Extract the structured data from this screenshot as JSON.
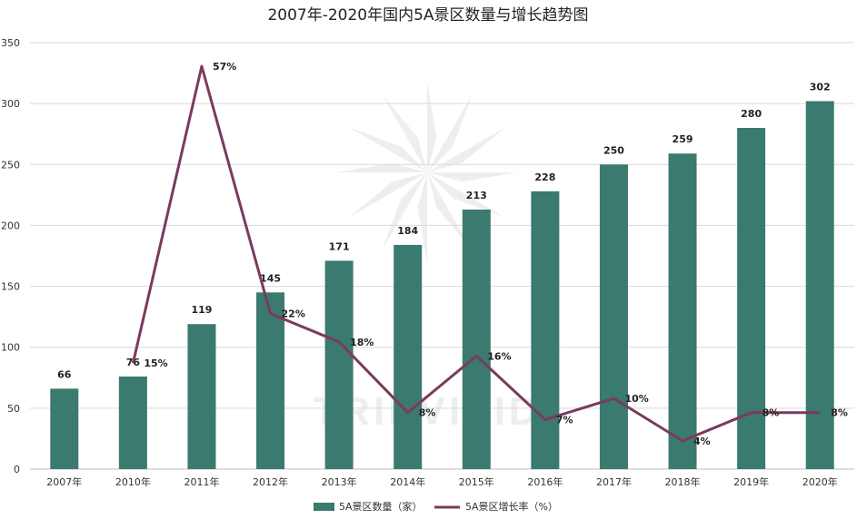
{
  "chart_data": {
    "type": "bar",
    "title": "2007年-2020年国内5A景区数量与增长趋势图",
    "categories": [
      "2007年",
      "2010年",
      "2011年",
      "2012年",
      "2013年",
      "2014年",
      "2015年",
      "2016年",
      "2017年",
      "2018年",
      "2019年",
      "2020年"
    ],
    "series": [
      {
        "name": "5A景区数量（家）",
        "type": "bar",
        "color": "#3b7a6f",
        "values": [
          66,
          76,
          119,
          145,
          171,
          184,
          213,
          228,
          250,
          259,
          280,
          302
        ],
        "labels": [
          "66",
          "76",
          "119",
          "145",
          "171",
          "184",
          "213",
          "228",
          "250",
          "259",
          "280",
          "302"
        ]
      },
      {
        "name": "5A景区增长率（%）",
        "type": "line",
        "color": "#7b3a5e",
        "values": [
          null,
          15,
          57,
          22,
          18,
          8,
          16,
          7,
          10,
          4,
          8,
          8
        ],
        "labels": [
          "",
          "15%",
          "57%",
          "22%",
          "18%",
          "8%",
          "16%",
          "7%",
          "10%",
          "4%",
          "8%",
          "8%"
        ]
      }
    ],
    "y_axis": {
      "min": 0,
      "max": 350,
      "step": 50,
      "ticks": [
        "0",
        "50",
        "100",
        "150",
        "200",
        "250",
        "300",
        "350"
      ]
    },
    "grid": true,
    "legend_position": "bottom",
    "watermark": "TRIPVIVID"
  }
}
